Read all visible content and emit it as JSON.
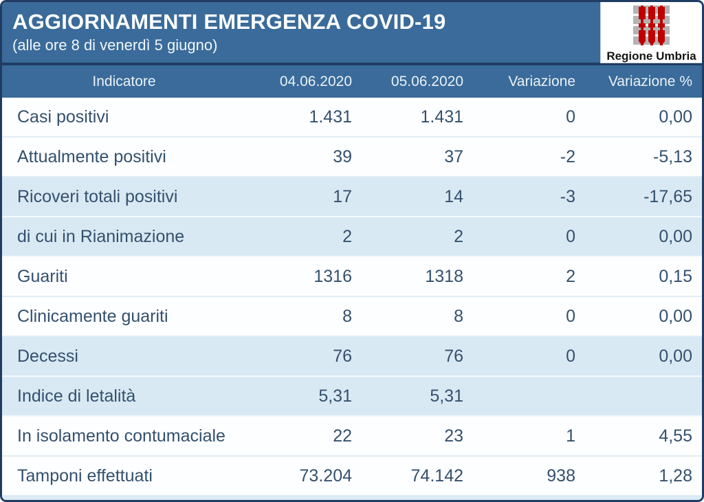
{
  "header": {
    "title": "AGGIORNAMENTI EMERGENZA COVID-19",
    "subtitle": "(alle ore 8 di venerdì 5 giugno)",
    "logo_text": "Regione Umbria"
  },
  "colors": {
    "band_blue": "#3a6b9a",
    "border_navy": "#203c62",
    "row_blue": "#d9e9f3",
    "text_dark": "#33506e",
    "logo_red": "#c00000",
    "logo_grey": "#b3b3b3"
  },
  "chart_data": {
    "type": "table",
    "title": "AGGIORNAMENTI EMERGENZA COVID-19",
    "subtitle": "(alle ore 8 di venerdì 5 giugno)",
    "columns": [
      "Indicatore",
      "04.06.2020",
      "05.06.2020",
      "Variazione",
      "Variazione %"
    ],
    "rows": [
      {
        "indicator": "Casi positivi",
        "d1": "1.431",
        "d2": "1.431",
        "variation": "0",
        "variation_pct": "0,00"
      },
      {
        "indicator": "Attualmente positivi",
        "d1": "39",
        "d2": "37",
        "variation": "-2",
        "variation_pct": "-5,13"
      },
      {
        "indicator": "Ricoveri totali positivi",
        "d1": "17",
        "d2": "14",
        "variation": "-3",
        "variation_pct": "-17,65"
      },
      {
        "indicator": "di cui in Rianimazione",
        "d1": "2",
        "d2": "2",
        "variation": "0",
        "variation_pct": "0,00"
      },
      {
        "indicator": "Guariti",
        "d1": "1316",
        "d2": "1318",
        "variation": "2",
        "variation_pct": "0,15"
      },
      {
        "indicator": "Clinicamente guariti",
        "d1": "8",
        "d2": "8",
        "variation": "0",
        "variation_pct": "0,00"
      },
      {
        "indicator": "Decessi",
        "d1": "76",
        "d2": "76",
        "variation": "0",
        "variation_pct": "0,00"
      },
      {
        "indicator": "Indice di letalità",
        "d1": "5,31",
        "d2": "5,31",
        "variation": "",
        "variation_pct": ""
      },
      {
        "indicator": "In isolamento contumaciale",
        "d1": "22",
        "d2": "23",
        "variation": "1",
        "variation_pct": "4,55"
      },
      {
        "indicator": "Tamponi effettuati",
        "d1": "73.204",
        "d2": "74.142",
        "variation": "938",
        "variation_pct": "1,28"
      }
    ]
  }
}
